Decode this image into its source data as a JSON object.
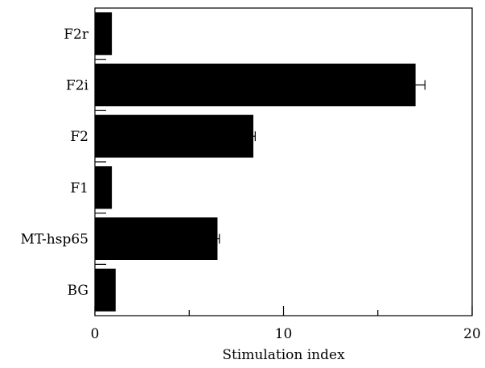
{
  "chart_data": {
    "type": "bar",
    "orientation": "horizontal",
    "categories": [
      "F2r",
      "F2i",
      "F2",
      "F1",
      "MT-hsp65",
      "BG"
    ],
    "values": [
      0.9,
      17.0,
      8.4,
      0.9,
      6.5,
      1.1
    ],
    "errors": [
      0,
      0.5,
      0.1,
      0,
      0.1,
      0
    ],
    "title": "",
    "xlabel": "Stimulation index",
    "ylabel": "",
    "xlim": [
      0,
      20
    ],
    "x_major_ticks": [
      0,
      10,
      20
    ],
    "x_minor_ticks": [
      5,
      15
    ],
    "tick_labels": [
      "0",
      "10",
      "20"
    ],
    "grid": false,
    "legend": false,
    "bar_color": "#000000"
  }
}
